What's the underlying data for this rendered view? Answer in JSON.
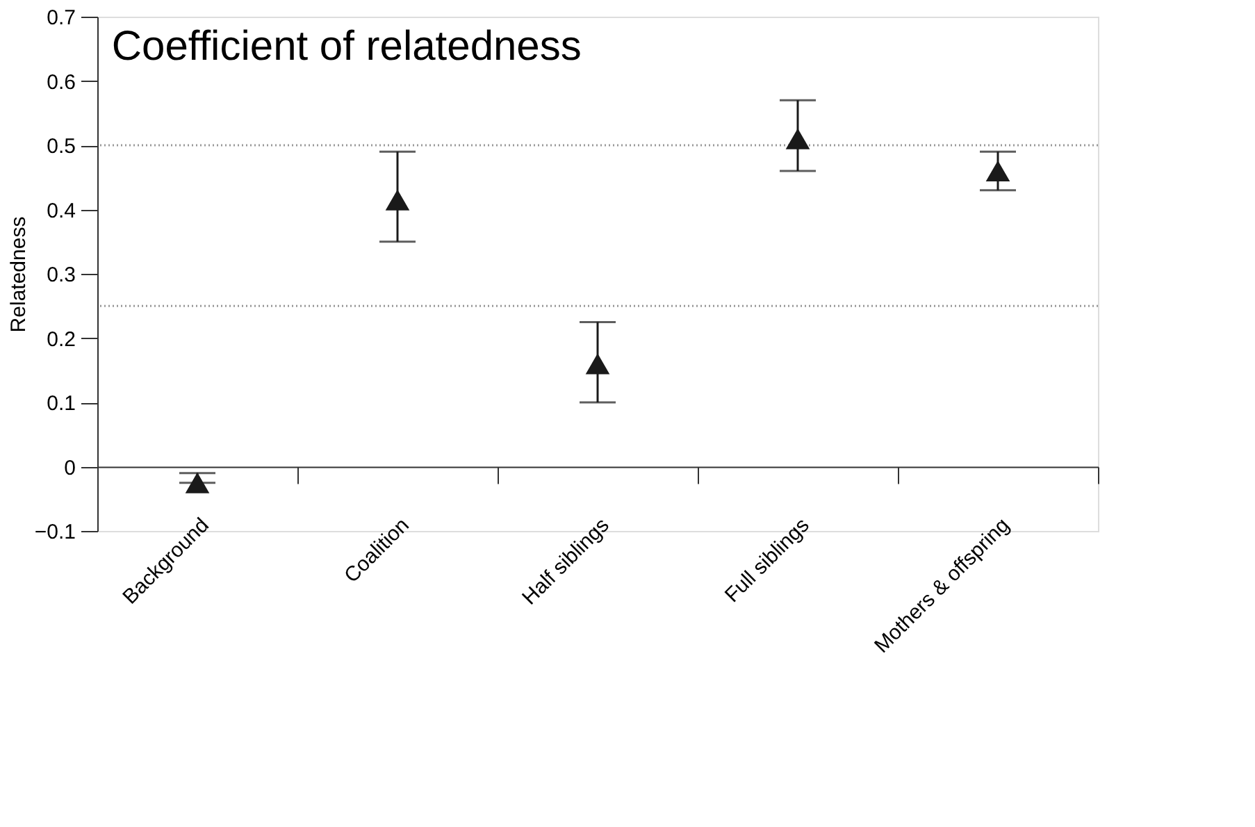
{
  "chart_data": {
    "type": "scatter",
    "title": "Coefficient of relatedness",
    "ylabel": "Relatedness",
    "categories": [
      "Background",
      "Coalition",
      "Half siblings",
      "Full siblings",
      "Mothers & offspring"
    ],
    "values": [
      -0.025,
      0.415,
      0.16,
      0.51,
      0.46
    ],
    "errors": [
      [
        -0.025,
        -0.01
      ],
      [
        0.35,
        0.49
      ],
      [
        0.1,
        0.225
      ],
      [
        0.46,
        0.57
      ],
      [
        0.43,
        0.49
      ]
    ],
    "color": "#1a1a1a",
    "marker": "triangle",
    "ylim": [
      -0.1,
      0.7
    ],
    "yticks": [
      -0.1,
      0,
      0.1,
      0.2,
      0.3,
      0.4,
      0.5,
      0.6,
      0.7
    ],
    "ref_lines": [
      {
        "axis": "y",
        "value": 0.5,
        "color": "#999999",
        "line_style": "dotted"
      },
      {
        "axis": "y",
        "value": 0.25,
        "color": "#999999",
        "line_style": "dotted"
      }
    ],
    "grid": false
  }
}
